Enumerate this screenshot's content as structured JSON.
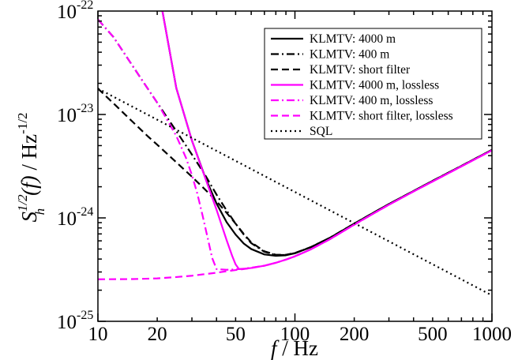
{
  "chart_data": {
    "type": "line",
    "xlabel": {
      "italic": "f",
      "rest": " / Hz"
    },
    "ylabel": {
      "S": "S",
      "sup": "1/2",
      "sub": "h",
      "f": "(f)",
      "unit": " / Hz",
      "unit_exp": "-1/2"
    },
    "x_scale": "log",
    "y_scale": "log",
    "xlim": [
      10,
      1000
    ],
    "ylim": [
      1e-25,
      1e-22
    ],
    "x_ticks": [
      10,
      20,
      50,
      100,
      200,
      500,
      1000
    ],
    "x_tick_labels": [
      "10",
      "20",
      "50",
      "100",
      "200",
      "500",
      "1000"
    ],
    "y_ticks": [
      {
        "value": 1e-22,
        "base": "10",
        "exp": "-22"
      },
      {
        "value": 1e-23,
        "base": "10",
        "exp": "-23"
      },
      {
        "value": 1e-24,
        "base": "10",
        "exp": "-24"
      },
      {
        "value": 1e-25,
        "base": "10",
        "exp": "-25"
      }
    ],
    "grid": false,
    "legend_position": "top-right",
    "series": [
      {
        "name": "KLMTV: 4000 m",
        "color": "#000000",
        "style": "solid",
        "x": [
          20.0,
          25,
          30,
          35,
          40,
          45,
          50,
          55,
          60,
          70,
          80,
          90,
          100,
          120,
          150,
          200,
          250,
          300,
          400,
          500,
          700,
          1000
        ],
        "y": [
          1.9e-22,
          1.8e-23,
          5.6e-24,
          2.48e-24,
          1.38e-24,
          9.1e-25,
          6.9e-25,
          5.65e-25,
          5e-25,
          4.43e-25,
          4.3e-25,
          4.35e-25,
          4.55e-25,
          5.2e-25,
          6.4e-25,
          8.8e-25,
          1.12e-24,
          1.36e-24,
          1.82e-24,
          2.28e-24,
          3.18e-24,
          4.55e-24
        ]
      },
      {
        "name": "KLMTV: 400 m",
        "color": "#000000",
        "style": "dashdot",
        "x": [
          10,
          12,
          15,
          18,
          20,
          25,
          30,
          35,
          40,
          45,
          50,
          55,
          60,
          70,
          80,
          90,
          100,
          120,
          150,
          200,
          250,
          300,
          400,
          500,
          700,
          1000
        ],
        "y": [
          8.3e-23,
          5.6e-23,
          2.95e-23,
          1.75e-23,
          1.3e-23,
          6.9e-24,
          4.1e-24,
          2.6e-24,
          1.68e-24,
          1.18e-24,
          8.8e-25,
          6.9e-25,
          5.7e-25,
          4.7e-25,
          4.38e-25,
          4.38e-25,
          4.57e-25,
          5.2e-25,
          6.4e-25,
          8.8e-25,
          1.12e-24,
          1.36e-24,
          1.82e-24,
          2.28e-24,
          3.18e-24,
          4.55e-24
        ]
      },
      {
        "name": "KLMTV: short filter",
        "color": "#000000",
        "style": "dashed",
        "x": [
          10,
          12,
          15,
          18,
          20,
          25,
          30,
          35,
          40,
          45,
          50,
          55,
          60,
          70,
          80,
          90,
          100,
          120,
          150,
          200,
          250,
          300,
          400,
          500,
          700,
          1000
        ],
        "y": [
          1.78e-23,
          1.28e-23,
          8.5e-24,
          6.1e-24,
          5.1e-24,
          3.45e-24,
          2.5e-24,
          1.88e-24,
          1.45e-24,
          1.12e-24,
          8.8e-25,
          7e-25,
          5.8e-25,
          4.75e-25,
          4.4e-25,
          4.4e-25,
          4.58e-25,
          5.2e-25,
          6.4e-25,
          8.8e-25,
          1.12e-24,
          1.36e-24,
          1.82e-24,
          2.28e-24,
          3.18e-24,
          4.55e-24
        ]
      },
      {
        "name": "KLMTV: 4000 m, lossless",
        "color": "#ff00ff",
        "style": "solid",
        "x": [
          20.0,
          25,
          30,
          35,
          40,
          45,
          48,
          50,
          52,
          55,
          60,
          70,
          80,
          90,
          100,
          120,
          150,
          200,
          250,
          300,
          400,
          500,
          700,
          1000
        ],
        "y": [
          1.9e-22,
          1.8e-23,
          5.6e-24,
          2.45e-24,
          1.2e-24,
          6.1e-25,
          4.3e-25,
          3.55e-25,
          3.2e-25,
          3.22e-25,
          3.28e-25,
          3.45e-25,
          3.68e-25,
          3.95e-25,
          4.25e-25,
          4.95e-25,
          6.2e-25,
          8.6e-25,
          1.1e-24,
          1.34e-24,
          1.8e-24,
          2.25e-24,
          3.15e-24,
          4.5e-24
        ]
      },
      {
        "name": "KLMTV: 400 m, lossless",
        "color": "#ff00ff",
        "style": "dashdot",
        "x": [
          10,
          12,
          15,
          18,
          20,
          22,
          25,
          28,
          30,
          32,
          34,
          36,
          38,
          40,
          45,
          50,
          55,
          60,
          70,
          80,
          90,
          100,
          120,
          150,
          200,
          250,
          300,
          400,
          500,
          700,
          1000
        ],
        "y": [
          8.3e-23,
          5.6e-23,
          2.95e-23,
          1.75e-23,
          1.3e-23,
          9.5e-24,
          6.2e-24,
          3.8e-24,
          2.6e-24,
          1.7e-24,
          1.05e-24,
          6.5e-25,
          4.1e-25,
          3.2e-25,
          3.15e-25,
          3.18e-25,
          3.23e-25,
          3.3e-25,
          3.45e-25,
          3.68e-25,
          3.95e-25,
          4.25e-25,
          4.95e-25,
          6.2e-25,
          8.6e-25,
          1.1e-24,
          1.34e-24,
          1.8e-24,
          2.25e-24,
          3.15e-24,
          4.5e-24
        ]
      },
      {
        "name": "KLMTV: short filter, lossless",
        "color": "#ff00ff",
        "style": "dashed",
        "x": [
          10,
          15,
          20,
          25,
          30,
          35,
          40,
          45,
          50,
          55,
          60,
          70,
          80,
          90,
          100,
          120,
          150,
          200,
          250,
          300,
          400,
          500,
          700,
          1000
        ],
        "y": [
          2.55e-25,
          2.56e-25,
          2.6e-25,
          2.68e-25,
          2.76e-25,
          2.86e-25,
          2.95e-25,
          3.05e-25,
          3.13e-25,
          3.2e-25,
          3.28e-25,
          3.45e-25,
          3.68e-25,
          3.95e-25,
          4.25e-25,
          4.95e-25,
          6.2e-25,
          8.6e-25,
          1.1e-24,
          1.34e-24,
          1.8e-24,
          2.25e-24,
          3.15e-24,
          4.5e-24
        ]
      },
      {
        "name": "SQL",
        "color": "#000000",
        "style": "dotted",
        "x": [
          10,
          1000
        ],
        "y": [
          1.78e-23,
          1.78e-25
        ]
      }
    ]
  }
}
